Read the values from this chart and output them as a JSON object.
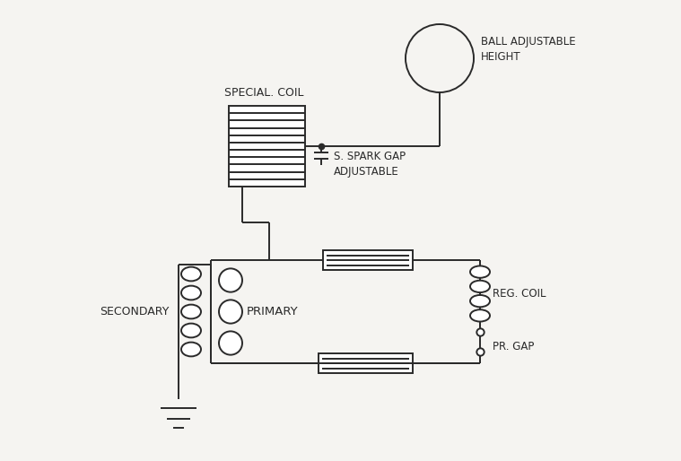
{
  "bg_color": "#f5f4f1",
  "line_color": "#2a2a2a",
  "text_color": "#2a2a2a",
  "lw": 1.4,
  "labels": {
    "ball": "BALL ADJUSTABLE\nHEIGHT",
    "special_coil": "SPECIAL. COIL",
    "spark_gap": "S. SPARK GAP\nADJUSTABLE",
    "secondary": "SECONDARY",
    "primary": "PRIMARY",
    "reg_coil": "REG. COIL",
    "pr_gap": "PR. GAP"
  },
  "figsize": [
    7.59,
    5.14
  ],
  "dpi": 100
}
